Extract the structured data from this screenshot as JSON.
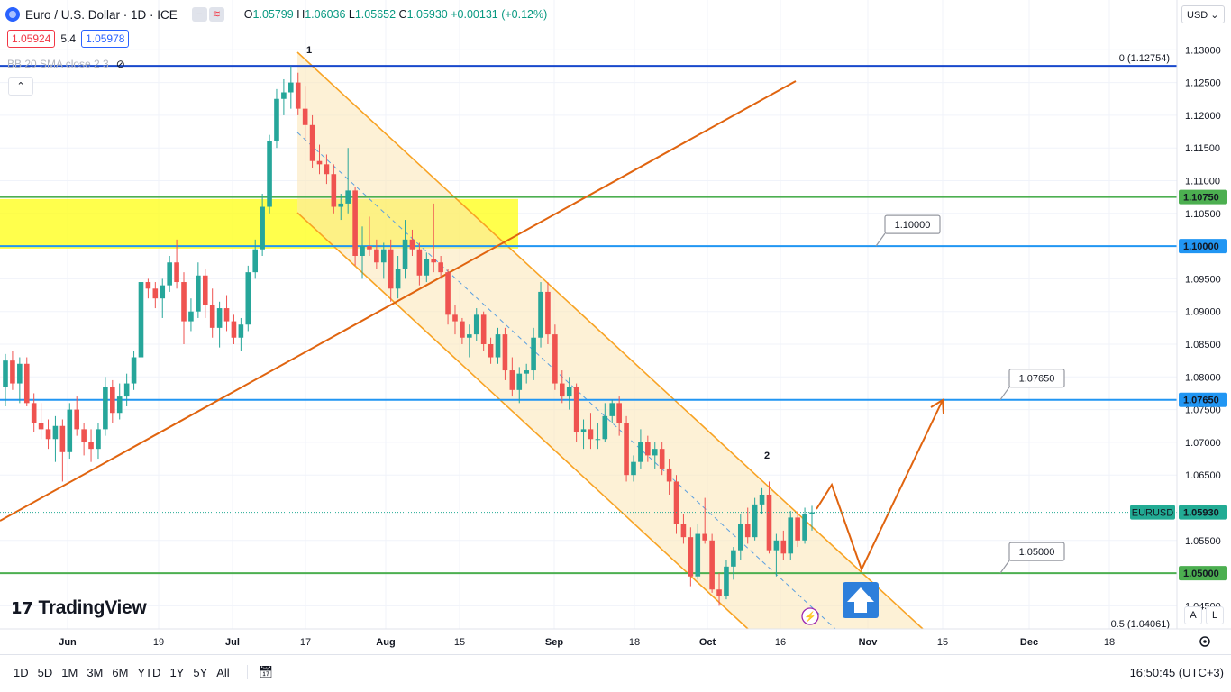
{
  "header": {
    "title": "Euro / U.S. Dollar · 1D · ICE",
    "open_label": "O",
    "open": "1.05799",
    "high_label": "H",
    "high": "1.06036",
    "low_label": "L",
    "low": "1.05652",
    "close_label": "C",
    "close": "1.05930",
    "change": "+0.00131 (+0.12%)"
  },
  "bid_ask": {
    "bid": "1.05924",
    "spread": "5.4",
    "ask": "1.05978"
  },
  "indicator": {
    "label": "BB 20 SMA close 2 3"
  },
  "currency": "USD",
  "brand": "TradingView",
  "timeframes": [
    "1D",
    "5D",
    "1M",
    "3M",
    "6M",
    "YTD",
    "1Y",
    "5Y",
    "All"
  ],
  "clock": "16:50:45 (UTC+3)",
  "price_scale_buttons": {
    "auto": "A",
    "log": "L"
  },
  "colors": {
    "up": "#26a69a",
    "down": "#ef5350",
    "fib_line": "#1848cc",
    "blue_level": "#2196f3",
    "green_level": "#4caf50",
    "channel": "#f8a324",
    "trendline": "#e0640f",
    "zone": "#ffff00",
    "current_price": "#22ab94"
  },
  "chart_data": {
    "type": "candlestick",
    "symbol": "EURUSD",
    "interval": "1D",
    "x_ticks": [
      "Jun",
      "19",
      "Jul",
      "17",
      "Aug",
      "15",
      "Sep",
      "18",
      "Oct",
      "16",
      "Nov",
      "15",
      "Dec",
      "18"
    ],
    "y_ticks": [
      "1.13000",
      "1.12500",
      "1.12000",
      "1.11500",
      "1.11000",
      "1.10500",
      "1.09500",
      "1.09000",
      "1.08500",
      "1.08000",
      "1.07500",
      "1.07000",
      "1.06500",
      "1.05500",
      "1.04500"
    ],
    "ylim": [
      1.0398,
      1.1325
    ],
    "ohlc": [
      [
        1.0785,
        1.0835,
        1.0755,
        1.0825
      ],
      [
        1.0825,
        1.084,
        1.078,
        1.079
      ],
      [
        1.079,
        1.083,
        1.076,
        1.082
      ],
      [
        1.082,
        1.083,
        1.0755,
        1.076
      ],
      [
        1.076,
        1.0775,
        1.0715,
        1.073
      ],
      [
        1.073,
        1.076,
        1.0705,
        1.072
      ],
      [
        1.072,
        1.0735,
        1.069,
        1.0705
      ],
      [
        1.0705,
        1.074,
        1.067,
        1.0725
      ],
      [
        1.0725,
        1.0735,
        1.064,
        1.0685
      ],
      [
        1.0685,
        1.076,
        1.0675,
        1.075
      ],
      [
        1.075,
        1.077,
        1.071,
        1.072
      ],
      [
        1.072,
        1.073,
        1.068,
        1.07
      ],
      [
        1.07,
        1.072,
        1.067,
        1.069
      ],
      [
        1.069,
        1.073,
        1.0675,
        1.072
      ],
      [
        1.072,
        1.08,
        1.071,
        1.0785
      ],
      [
        1.0785,
        1.0795,
        1.073,
        1.0745
      ],
      [
        1.0745,
        1.079,
        1.0735,
        1.077
      ],
      [
        1.077,
        1.0805,
        1.0755,
        1.079
      ],
      [
        1.079,
        1.084,
        1.078,
        1.083
      ],
      [
        1.083,
        1.0955,
        1.0825,
        1.0945
      ],
      [
        1.0945,
        1.095,
        1.092,
        1.0935
      ],
      [
        1.0935,
        1.0945,
        1.0905,
        1.092
      ],
      [
        1.092,
        1.095,
        1.089,
        1.094
      ],
      [
        1.094,
        1.0985,
        1.093,
        1.0975
      ],
      [
        1.0975,
        1.101,
        1.0935,
        1.0945
      ],
      [
        1.0945,
        1.096,
        1.085,
        1.0885
      ],
      [
        1.0885,
        1.092,
        1.087,
        1.09
      ],
      [
        1.09,
        1.0975,
        1.089,
        1.0955
      ],
      [
        1.0955,
        1.0965,
        1.089,
        1.091
      ],
      [
        1.091,
        1.0935,
        1.086,
        1.0875
      ],
      [
        1.0875,
        1.0915,
        1.0845,
        1.0905
      ],
      [
        1.0905,
        1.0925,
        1.087,
        1.0885
      ],
      [
        1.0885,
        1.0895,
        1.085,
        1.086
      ],
      [
        1.086,
        1.089,
        1.084,
        1.088
      ],
      [
        1.088,
        1.097,
        1.087,
        1.096
      ],
      [
        1.096,
        1.101,
        1.095,
        1.0995
      ],
      [
        1.0995,
        1.108,
        1.0985,
        1.106
      ],
      [
        1.106,
        1.117,
        1.105,
        1.116
      ],
      [
        1.116,
        1.124,
        1.115,
        1.1225
      ],
      [
        1.1225,
        1.1255,
        1.12,
        1.1235
      ],
      [
        1.1235,
        1.1275,
        1.121,
        1.125
      ],
      [
        1.125,
        1.1265,
        1.12,
        1.121
      ],
      [
        1.121,
        1.1245,
        1.116,
        1.1185
      ],
      [
        1.1185,
        1.12,
        1.112,
        1.113
      ],
      [
        1.113,
        1.1155,
        1.111,
        1.1125
      ],
      [
        1.1125,
        1.114,
        1.1095,
        1.111
      ],
      [
        1.111,
        1.1125,
        1.105,
        1.106
      ],
      [
        1.106,
        1.108,
        1.104,
        1.1065
      ],
      [
        1.1065,
        1.115,
        1.105,
        1.1085
      ],
      [
        1.1085,
        1.109,
        1.097,
        1.0985
      ],
      [
        1.0985,
        1.103,
        1.095,
        1.1
      ],
      [
        1.1,
        1.1045,
        1.0985,
        1.0995
      ],
      [
        1.0995,
        1.101,
        1.0965,
        1.0975
      ],
      [
        1.0975,
        1.1005,
        1.095,
        1.0995
      ],
      [
        1.0995,
        1.101,
        1.0915,
        1.0935
      ],
      [
        1.0935,
        1.0985,
        1.092,
        1.0965
      ],
      [
        1.0965,
        1.104,
        1.095,
        1.101
      ],
      [
        1.101,
        1.1025,
        1.0985,
        1.0995
      ],
      [
        1.0995,
        1.1005,
        1.094,
        1.0955
      ],
      [
        1.0955,
        1.099,
        1.0945,
        1.098
      ],
      [
        1.098,
        1.1065,
        1.096,
        1.0975
      ],
      [
        1.0975,
        1.0985,
        1.095,
        1.096
      ],
      [
        1.096,
        1.0965,
        1.088,
        1.0895
      ],
      [
        1.0895,
        1.091,
        1.0865,
        1.0885
      ],
      [
        1.0885,
        1.089,
        1.085,
        1.086
      ],
      [
        1.086,
        1.088,
        1.083,
        1.0865
      ],
      [
        1.0865,
        1.0905,
        1.0855,
        1.0895
      ],
      [
        1.0895,
        1.09,
        1.084,
        1.085
      ],
      [
        1.085,
        1.086,
        1.082,
        1.083
      ],
      [
        1.083,
        1.0875,
        1.082,
        1.0865
      ],
      [
        1.0865,
        1.0875,
        1.0795,
        1.081
      ],
      [
        1.081,
        1.083,
        1.077,
        1.078
      ],
      [
        1.078,
        1.0815,
        1.076,
        1.0805
      ],
      [
        1.0805,
        1.082,
        1.079,
        1.081
      ],
      [
        1.081,
        1.0875,
        1.0795,
        1.086
      ],
      [
        1.086,
        1.0945,
        1.0845,
        1.093
      ],
      [
        1.093,
        1.0945,
        1.085,
        1.0865
      ],
      [
        1.0865,
        1.088,
        1.078,
        1.079
      ],
      [
        1.079,
        1.081,
        1.076,
        1.077
      ],
      [
        1.077,
        1.08,
        1.075,
        1.0785
      ],
      [
        1.0785,
        1.079,
        1.07,
        1.0715
      ],
      [
        1.0715,
        1.0735,
        1.069,
        1.072
      ],
      [
        1.072,
        1.0745,
        1.069,
        1.0705
      ],
      [
        1.0705,
        1.073,
        1.069,
        1.0705
      ],
      [
        1.0705,
        1.076,
        1.07,
        1.074
      ],
      [
        1.074,
        1.0765,
        1.073,
        1.076
      ],
      [
        1.076,
        1.077,
        1.071,
        1.073
      ],
      [
        1.073,
        1.074,
        1.064,
        1.065
      ],
      [
        1.065,
        1.068,
        1.064,
        1.067
      ],
      [
        1.067,
        1.072,
        1.066,
        1.07
      ],
      [
        1.07,
        1.071,
        1.067,
        1.068
      ],
      [
        1.068,
        1.07,
        1.066,
        1.069
      ],
      [
        1.069,
        1.07,
        1.065,
        1.066
      ],
      [
        1.066,
        1.0675,
        1.062,
        1.064
      ],
      [
        1.064,
        1.065,
        1.056,
        1.0575
      ],
      [
        1.0575,
        1.059,
        1.0545,
        1.0555
      ],
      [
        1.0555,
        1.057,
        1.048,
        1.0495
      ],
      [
        1.0495,
        1.0575,
        1.049,
        1.056
      ],
      [
        1.056,
        1.0615,
        1.0545,
        1.055
      ],
      [
        1.055,
        1.056,
        1.047,
        1.0475
      ],
      [
        1.0475,
        1.05,
        1.045,
        1.0465
      ],
      [
        1.0465,
        1.052,
        1.046,
        1.051
      ],
      [
        1.051,
        1.054,
        1.049,
        1.0535
      ],
      [
        1.0535,
        1.059,
        1.052,
        1.0575
      ],
      [
        1.0575,
        1.06,
        1.0545,
        1.0555
      ],
      [
        1.0555,
        1.0615,
        1.055,
        1.0605
      ],
      [
        1.0605,
        1.063,
        1.059,
        1.062
      ],
      [
        1.062,
        1.064,
        1.053,
        1.0535
      ],
      [
        1.0535,
        1.056,
        1.0495,
        1.055
      ],
      [
        1.055,
        1.0565,
        1.052,
        1.053
      ],
      [
        1.053,
        1.0595,
        1.052,
        1.0585
      ],
      [
        1.0585,
        1.0595,
        1.054,
        1.055
      ],
      [
        1.055,
        1.06,
        1.0545,
        1.059
      ],
      [
        1.059,
        1.0603,
        1.0565,
        1.0593
      ]
    ],
    "series_label": "EURUSD",
    "current_price": "1.05930",
    "levels": [
      {
        "name": "fib-0",
        "value": 1.12754,
        "label": "0 (1.12754)",
        "style": "fib"
      },
      {
        "name": "fib-05",
        "value": 1.04061,
        "label": "0.5 (1.04061)",
        "style": "fib-faint"
      },
      {
        "name": "resistance-110750",
        "value": 1.1075,
        "label": "1.10750",
        "style": "green"
      },
      {
        "name": "level-110000",
        "value": 1.1,
        "label": "1.10000",
        "style": "blue",
        "callout": "1.10000"
      },
      {
        "name": "level-107650",
        "value": 1.0765,
        "label": "1.07650",
        "style": "blue",
        "callout": "1.07650"
      },
      {
        "name": "support-105000",
        "value": 1.05,
        "label": "1.05000",
        "style": "green",
        "callout": "1.05000"
      }
    ],
    "annotations": {
      "wave_1": "1",
      "wave_2": "2"
    },
    "zone": {
      "from": 1.0996,
      "to": 1.1072
    }
  }
}
